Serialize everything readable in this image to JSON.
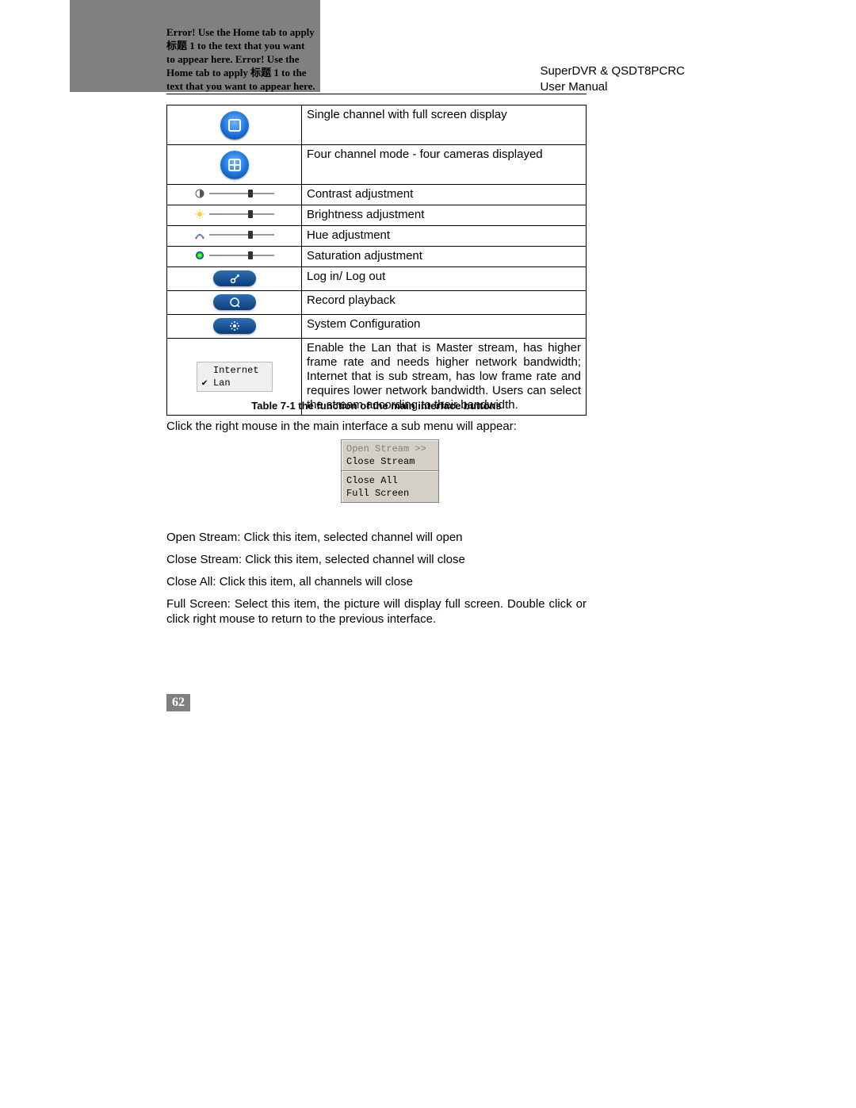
{
  "header": {
    "error_text": "Error! Use the Home tab to apply 标题 1 to the text that you want to appear here. Error! Use the Home tab to apply 标题 1 to the text that you want to appear here.",
    "product": "SuperDVR & QSDT8PCRC",
    "doc_type": "User  Manual"
  },
  "table": {
    "rows": [
      {
        "icon": "single-channel",
        "desc": "Single channel with full screen display",
        "tall": true
      },
      {
        "icon": "four-channel",
        "desc": "Four channel mode - four cameras displayed",
        "tall": true
      },
      {
        "icon": "contrast-slider",
        "desc": "Contrast adjustment"
      },
      {
        "icon": "brightness-slider",
        "desc": "Brightness adjustment"
      },
      {
        "icon": "hue-slider",
        "desc": "Hue adjustment"
      },
      {
        "icon": "saturation-slider",
        "desc": "Saturation adjustment"
      },
      {
        "icon": "login-button",
        "desc": "Log in/ Log out"
      },
      {
        "icon": "playback-button",
        "desc": "Record playback"
      },
      {
        "icon": "config-button",
        "desc": "System Configuration"
      },
      {
        "icon": "lan-selector",
        "desc": "Enable the Lan that is Master stream, has higher frame rate and needs higher network bandwidth; Internet that is sub stream, has low frame rate and requires lower network bandwidth. Users can select the stream according to their bandwidth."
      }
    ],
    "caption": "Table 7-1 the function of the main interface buttons"
  },
  "paragraphs": {
    "intro_submenu": "Click the right mouse in the main interface a sub menu will appear:",
    "open_stream": "Open Stream: Click this item, selected channel will open",
    "close_stream": "Close Stream: Click this item, selected channel will close",
    "close_all": "Close All: Click this item, all channels will close",
    "full_screen": "Full Screen: Select this item, the picture will display full screen. Double click or click right mouse to return to the previous interface."
  },
  "submenu": {
    "open_stream": "Open Stream >>",
    "close_stream": "Close Stream",
    "close_all": "Close All",
    "full_screen": "Full Screen"
  },
  "lan_selector": {
    "opt1": "Internet",
    "opt2": "Lan"
  },
  "page_number": "62",
  "colors": {
    "header_bg": "#808080",
    "blue_grad_top": "#2e6fb5"
  }
}
